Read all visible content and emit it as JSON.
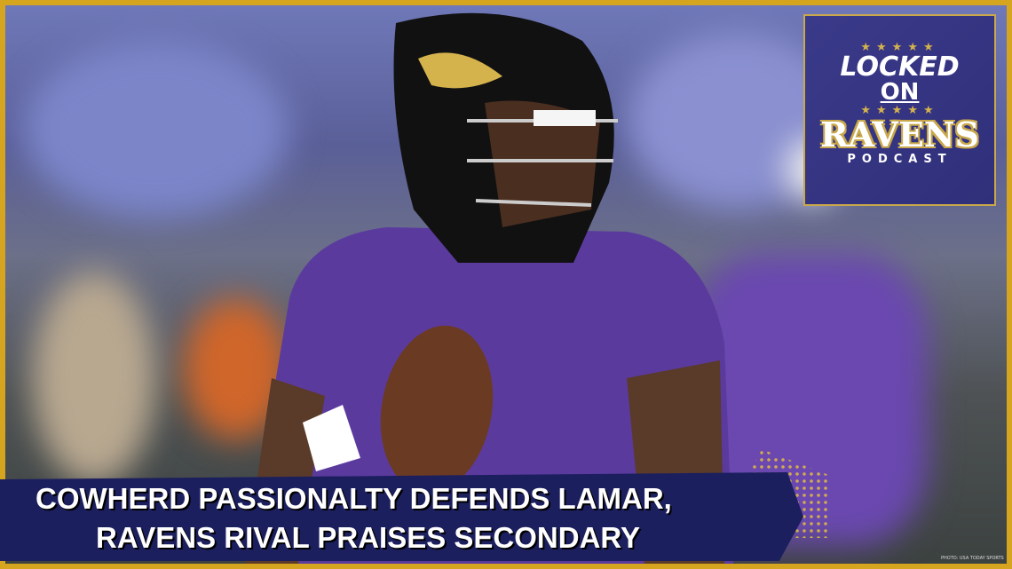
{
  "logo": {
    "line1": "LOCKED",
    "line2": "ON",
    "line3": "RAVENS",
    "line4": "PODCAST",
    "stars": "★★★★★"
  },
  "headline": {
    "line1": "COWHERD PASSIONALTY DEFENDS LAMAR,",
    "line2": "RAVENS RIVAL PRAISES SECONDARY"
  },
  "photo_credit": "PHOTO: USA TODAY SPORTS",
  "colors": {
    "border": "#d6a520",
    "banner": "#1c1f5e",
    "jersey": "#5b3a9e",
    "logo_bg": "#33337f"
  }
}
